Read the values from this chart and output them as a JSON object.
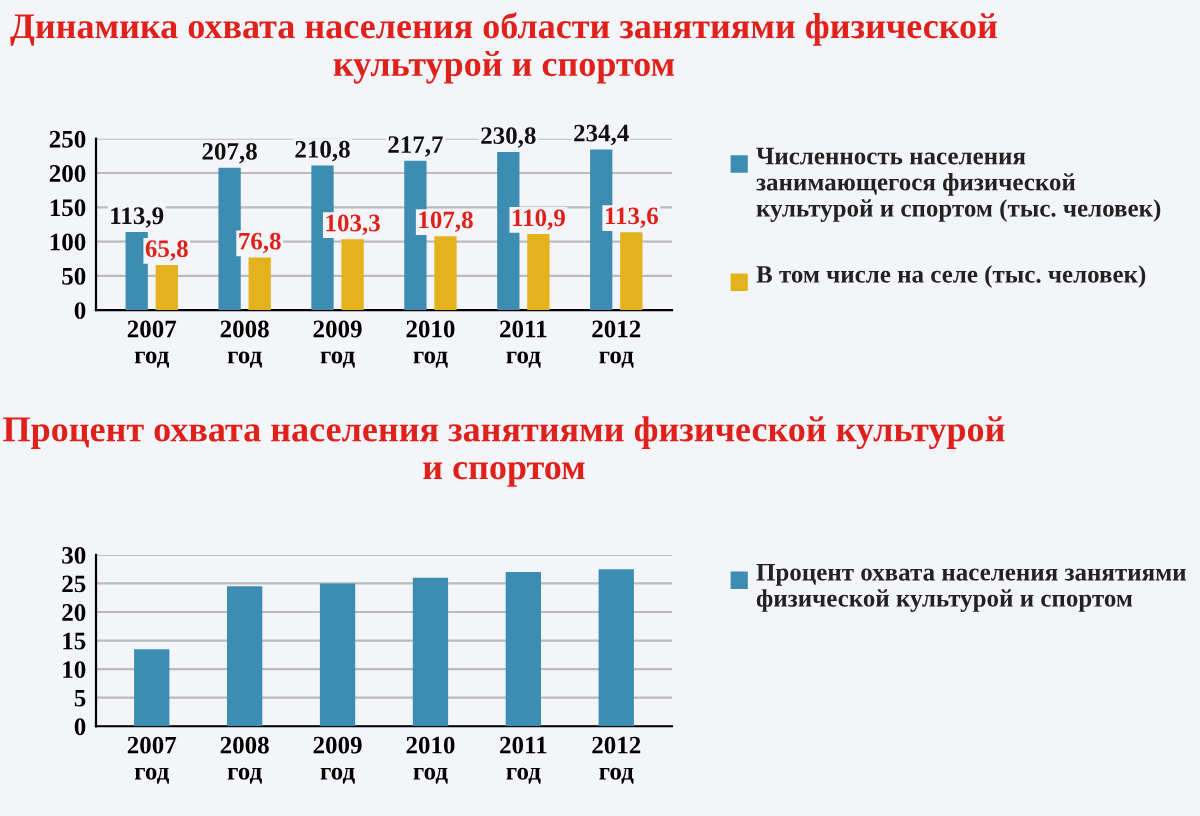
{
  "chart_data": [
    {
      "type": "bar",
      "title": "Динамика охвата населения области занятиями физической культурой и спортом",
      "categories": [
        "2007 год",
        "2008 год",
        "2009 год",
        "2010 год",
        "2011 год",
        "2012 год"
      ],
      "series": [
        {
          "name": "Численность населения занимающегося физической культурой и спортом (тыс. человек)",
          "color": "#3d8db3",
          "values": [
            113.9,
            207.8,
            210.8,
            217.7,
            230.8,
            234.4
          ],
          "value_labels": [
            "113,9",
            "207,8",
            "210,8",
            "217,7",
            "230,8",
            "234,4"
          ]
        },
        {
          "name": "В том числе на селе (тыс. человек)",
          "color": "#e3b21c",
          "values": [
            65.8,
            76.8,
            103.3,
            107.8,
            110.9,
            113.6
          ],
          "value_labels": [
            "65,8",
            "76,8",
            "103,3",
            "107,8",
            "110,9",
            "113,6"
          ]
        }
      ],
      "ylim": [
        0,
        250
      ],
      "yticks": [
        0,
        50,
        100,
        150,
        200,
        250
      ],
      "grid": "y",
      "legend": "right"
    },
    {
      "type": "bar",
      "title": "Процент охвата населения занятиями физической культурой и спортом",
      "categories": [
        "2007 год",
        "2008 год",
        "2009 год",
        "2010 год",
        "2011 год",
        "2012 год"
      ],
      "series": [
        {
          "name": "Процент охвата населения занятиями физической культурой и спортом",
          "color": "#3d8db3",
          "values": [
            13.5,
            24.5,
            25,
            26,
            27,
            27.5
          ]
        }
      ],
      "ylim": [
        0,
        30
      ],
      "yticks": [
        0,
        5,
        10,
        15,
        20,
        25,
        30
      ],
      "grid": "y",
      "legend": "right"
    }
  ]
}
